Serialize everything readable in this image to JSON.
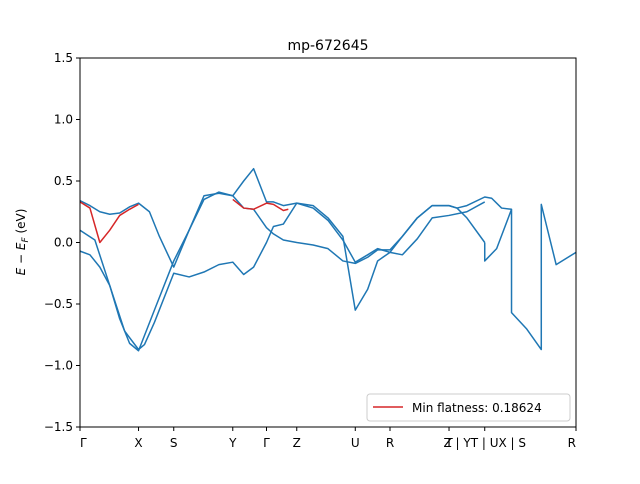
{
  "chart_data": {
    "type": "line",
    "title": "mp-672645",
    "xlabel": "",
    "ylabel_main": "E − E",
    "ylabel_sub": "F",
    "ylabel_unit": " (eV)",
    "xlim": [
      0,
      1
    ],
    "ylim": [
      -1.5,
      1.5
    ],
    "yticks": [
      -1.5,
      -1.0,
      -0.5,
      0.0,
      0.5,
      1.0,
      1.5
    ],
    "ytick_labels": [
      "−1.5",
      "−1.0",
      "−0.5",
      "0.0",
      "0.5",
      "1.0",
      "1.5"
    ],
    "xticks": [
      {
        "pos": 0.0,
        "label": "Γ"
      },
      {
        "pos": 0.118,
        "label": "X"
      },
      {
        "pos": 0.189,
        "label": "S"
      },
      {
        "pos": 0.308,
        "label": "Y"
      },
      {
        "pos": 0.376,
        "label": "Γ"
      },
      {
        "pos": 0.437,
        "label": "Z"
      },
      {
        "pos": 0.555,
        "label": "U"
      },
      {
        "pos": 0.625,
        "label": "R"
      },
      {
        "pos": 0.744,
        "label": "T"
      },
      {
        "pos": 0.816,
        "label": "Z | YT | UX | S"
      },
      {
        "pos": 1.0,
        "label": "R"
      }
    ],
    "legend": {
      "position": "lower-right",
      "entries": [
        {
          "label": "Min flatness: 0.18624",
          "color": "#d62728"
        }
      ]
    },
    "colors": {
      "bands": "#1f77b4",
      "flat_band": "#d62728"
    },
    "series": [
      {
        "color": "#1f77b4",
        "x": [
          0.0,
          0.02,
          0.04,
          0.06,
          0.08,
          0.1,
          0.118,
          0.14,
          0.16,
          0.189,
          0.22,
          0.25,
          0.28,
          0.308,
          0.33,
          0.35,
          0.376,
          0.39,
          0.41,
          0.437,
          0.47,
          0.5,
          0.53,
          0.555,
          0.58,
          0.6,
          0.625,
          0.65,
          0.68,
          0.71,
          0.744,
          0.76,
          0.78,
          0.816,
          0.83,
          0.85,
          0.87
        ],
        "y": [
          0.34,
          0.3,
          0.25,
          0.23,
          0.24,
          0.29,
          0.32,
          0.25,
          0.05,
          -0.2,
          0.1,
          0.38,
          0.4,
          0.38,
          0.5,
          0.6,
          0.33,
          0.33,
          0.3,
          0.32,
          0.28,
          0.18,
          0.02,
          -0.16,
          -0.1,
          -0.05,
          -0.08,
          0.05,
          0.2,
          0.3,
          0.3,
          0.28,
          0.3,
          0.37,
          0.36,
          0.28,
          0.27
        ]
      },
      {
        "color": "#1f77b4",
        "x": [
          0.0,
          0.03,
          0.06,
          0.09,
          0.118,
          0.13,
          0.15,
          0.189,
          0.22,
          0.25,
          0.28,
          0.308,
          0.33,
          0.35,
          0.376,
          0.39,
          0.41,
          0.437,
          0.47,
          0.5,
          0.53,
          0.555,
          0.58,
          0.6,
          0.625,
          0.65,
          0.68,
          0.71,
          0.744,
          0.78,
          0.816
        ],
        "y": [
          0.1,
          0.02,
          -0.35,
          -0.72,
          -0.87,
          -0.83,
          -0.65,
          -0.25,
          -0.28,
          -0.24,
          -0.18,
          -0.16,
          -0.26,
          -0.2,
          0.0,
          0.13,
          0.15,
          0.32,
          0.3,
          0.2,
          0.05,
          -0.55,
          -0.38,
          -0.15,
          -0.08,
          -0.1,
          0.03,
          0.2,
          0.22,
          0.25,
          0.33
        ]
      },
      {
        "color": "#1f77b4",
        "x": [
          0.0,
          0.02,
          0.04,
          0.06,
          0.08,
          0.1,
          0.118,
          0.15,
          0.189,
          0.22,
          0.25,
          0.28,
          0.308,
          0.33,
          0.35,
          0.376,
          0.39,
          0.41,
          0.437,
          0.47,
          0.5,
          0.53,
          0.555,
          0.58,
          0.6,
          0.625,
          0.65,
          0.68,
          0.71,
          0.744,
          0.76,
          0.78,
          0.816
        ],
        "y": [
          -0.07,
          -0.1,
          -0.2,
          -0.35,
          -0.62,
          -0.82,
          -0.88,
          -0.55,
          -0.15,
          0.1,
          0.35,
          0.41,
          0.38,
          0.28,
          0.27,
          0.12,
          0.07,
          0.02,
          0.0,
          -0.02,
          -0.05,
          -0.15,
          -0.17,
          -0.12,
          -0.06,
          -0.06,
          0.05,
          0.2,
          0.3,
          0.3,
          0.28,
          0.2,
          0.0
        ]
      },
      {
        "color": "#1f77b4",
        "x": [
          0.816,
          0.816,
          0.84,
          0.87,
          0.87,
          0.9,
          0.93,
          0.93,
          0.96,
          1.0
        ],
        "y": [
          0.0,
          -0.15,
          -0.05,
          0.27,
          -0.57,
          -0.7,
          -0.87,
          0.31,
          -0.18,
          -0.08
        ]
      },
      {
        "color": "#d62728",
        "x": [
          0.0,
          0.02,
          0.04,
          0.06,
          0.08,
          0.1,
          0.118
        ],
        "y": [
          0.33,
          0.28,
          0.0,
          0.1,
          0.22,
          0.27,
          0.31
        ]
      },
      {
        "color": "#d62728",
        "x": [
          0.308,
          0.33,
          0.35,
          0.376,
          0.39,
          0.41,
          0.42
        ],
        "y": [
          0.35,
          0.28,
          0.27,
          0.32,
          0.31,
          0.26,
          0.27
        ]
      }
    ]
  }
}
